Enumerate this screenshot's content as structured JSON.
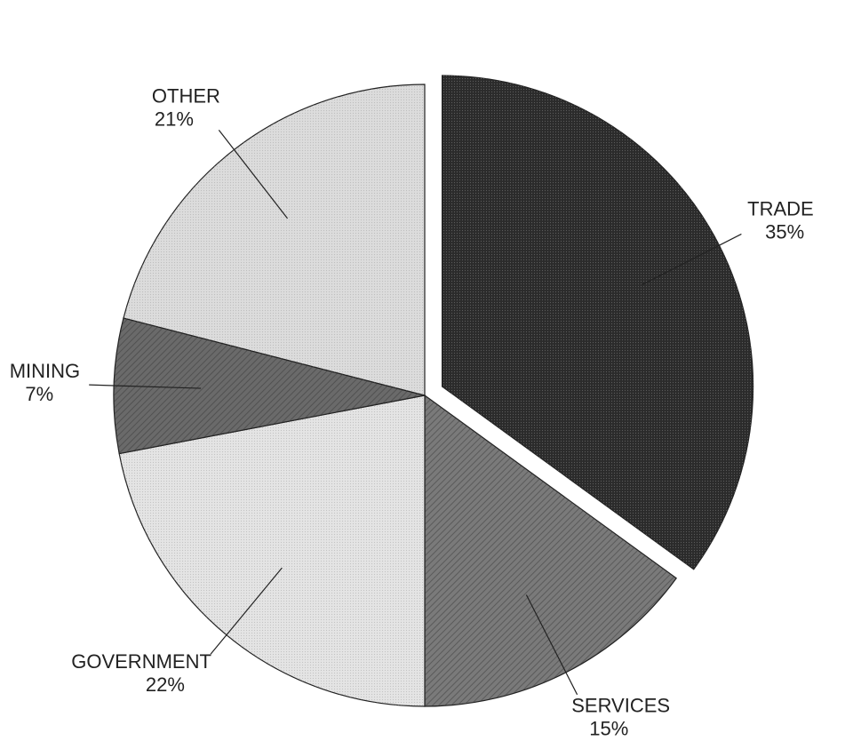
{
  "chart_data": {
    "type": "pie",
    "categories": [
      "TRADE",
      "SERVICES",
      "GOVERNMENT",
      "MINING",
      "OTHER"
    ],
    "values": [
      35,
      15,
      22,
      7,
      21
    ],
    "value_labels": [
      "35%",
      "15%",
      "22%",
      "7%",
      "21%"
    ],
    "colors": [
      "#2b2b2b",
      "#7a7a7a",
      "#e4e4e4",
      "#6a6a6a",
      "#dcdcdc"
    ],
    "explode": [
      true,
      false,
      false,
      false,
      false
    ]
  }
}
